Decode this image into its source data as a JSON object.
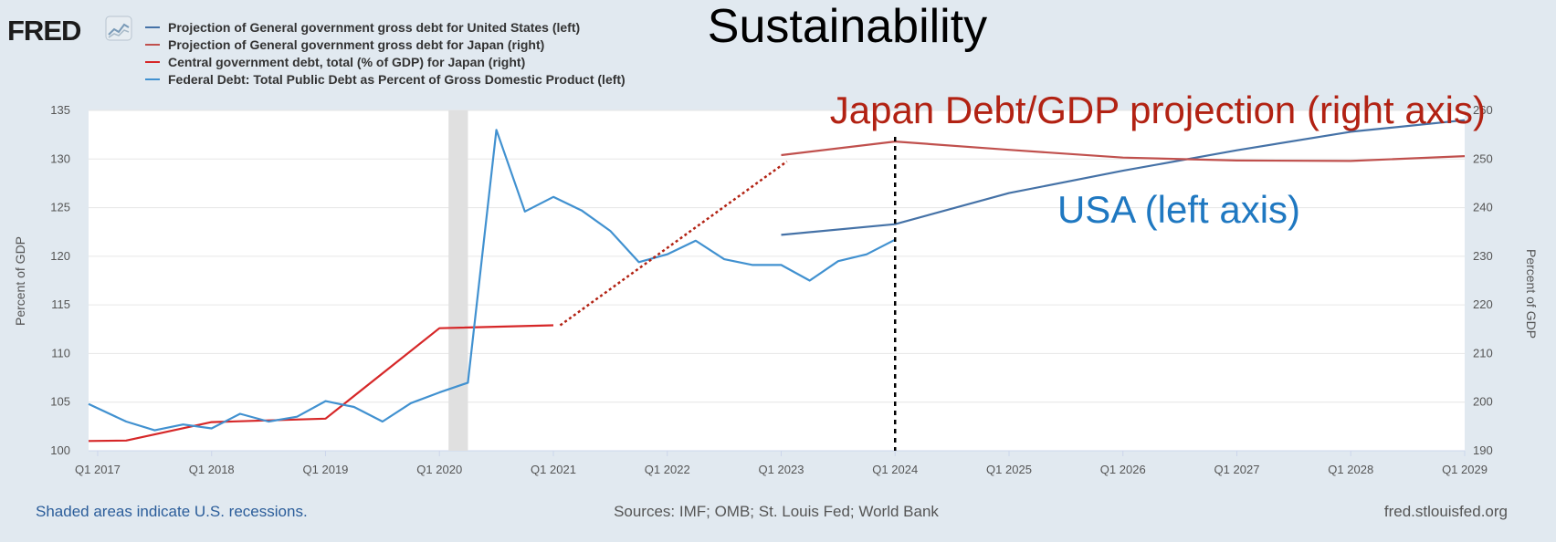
{
  "brand": {
    "logo_text": "FRED",
    "logo_icon": "line-chart-icon"
  },
  "overlay": {
    "title": "Sustainability",
    "japan_label": "Japan Debt/GDP projection (right axis)",
    "usa_label": "USA (left axis)"
  },
  "footer": {
    "recession_note": "Shaded areas indicate U.S. recessions.",
    "sources": "Sources: IMF; OMB; St. Louis Fed; World Bank",
    "site": "fred.stlouisfed.org"
  },
  "colors": {
    "us_projection": "#4572a7",
    "japan_projection": "#c0504d",
    "japan_central_debt": "#d62728",
    "us_federal_debt": "#4191d0",
    "japan_annotation": "#b22213",
    "usa_annotation": "#1f78c1",
    "recession": "#e0e0e0"
  },
  "chart_data": {
    "type": "line",
    "left_axis": {
      "label": "Percent of GDP",
      "range": [
        100,
        135
      ],
      "ticks": [
        100,
        105,
        110,
        115,
        120,
        125,
        130,
        135
      ]
    },
    "right_axis": {
      "label": "Percent of GDP",
      "range": [
        190,
        260
      ],
      "ticks": [
        190,
        200,
        210,
        220,
        230,
        240,
        250,
        260
      ]
    },
    "x_range": [
      2016.92,
      2029.0
    ],
    "x_ticks": [
      {
        "x": 2017,
        "label": "Q1 2017"
      },
      {
        "x": 2018,
        "label": "Q1 2018"
      },
      {
        "x": 2019,
        "label": "Q1 2019"
      },
      {
        "x": 2020,
        "label": "Q1 2020"
      },
      {
        "x": 2021,
        "label": "Q1 2021"
      },
      {
        "x": 2022,
        "label": "Q1 2022"
      },
      {
        "x": 2023,
        "label": "Q1 2023"
      },
      {
        "x": 2024,
        "label": "Q1 2024"
      },
      {
        "x": 2025,
        "label": "Q1 2025"
      },
      {
        "x": 2026,
        "label": "Q1 2026"
      },
      {
        "x": 2027,
        "label": "Q1 2027"
      },
      {
        "x": 2028,
        "label": "Q1 2028"
      },
      {
        "x": 2029,
        "label": "Q1 2029"
      }
    ],
    "recession": {
      "start": 2020.08,
      "end": 2020.25
    },
    "vertical_marker": 2024.0,
    "series": [
      {
        "name": "Projection of General government gross debt for United States (left)",
        "axis": "left",
        "color_key": "us_projection",
        "points": [
          [
            2023.0,
            122.2
          ],
          [
            2024.0,
            123.3
          ],
          [
            2025.0,
            126.5
          ],
          [
            2026.0,
            128.8
          ],
          [
            2027.0,
            130.9
          ],
          [
            2028.0,
            132.8
          ],
          [
            2029.0,
            134.0
          ]
        ]
      },
      {
        "name": "Projection of General government gross debt for Japan (right)",
        "axis": "right",
        "color_key": "japan_projection",
        "points": [
          [
            2023.0,
            250.8
          ],
          [
            2024.0,
            253.6
          ],
          [
            2025.0,
            251.9
          ],
          [
            2026.0,
            250.3
          ],
          [
            2027.0,
            249.7
          ],
          [
            2028.0,
            249.6
          ],
          [
            2029.0,
            250.6
          ]
        ]
      },
      {
        "name": "Central government debt, total (% of GDP) for Japan (right)",
        "axis": "right",
        "color_key": "japan_central_debt",
        "points": [
          [
            2016.92,
            192.0
          ],
          [
            2017.25,
            192.1
          ],
          [
            2018.0,
            195.9
          ],
          [
            2019.0,
            196.6
          ],
          [
            2020.0,
            215.2
          ],
          [
            2021.0,
            215.8
          ]
        ]
      },
      {
        "name": "Federal Debt: Total Public Debt as Percent of Gross Domestic Product (left)",
        "axis": "left",
        "color_key": "us_federal_debt",
        "points": [
          [
            2016.92,
            104.8
          ],
          [
            2017.25,
            103.0
          ],
          [
            2017.5,
            102.1
          ],
          [
            2017.75,
            102.7
          ],
          [
            2018.0,
            102.3
          ],
          [
            2018.25,
            103.8
          ],
          [
            2018.5,
            103.0
          ],
          [
            2018.75,
            103.5
          ],
          [
            2019.0,
            105.1
          ],
          [
            2019.25,
            104.5
          ],
          [
            2019.5,
            103.0
          ],
          [
            2019.75,
            104.9
          ],
          [
            2020.0,
            106.0
          ],
          [
            2020.25,
            107.0
          ],
          [
            2020.5,
            133.0
          ],
          [
            2020.75,
            124.6
          ],
          [
            2021.0,
            126.1
          ],
          [
            2021.25,
            124.7
          ],
          [
            2021.5,
            122.6
          ],
          [
            2021.75,
            119.4
          ],
          [
            2022.0,
            120.2
          ],
          [
            2022.25,
            121.6
          ],
          [
            2022.5,
            119.7
          ],
          [
            2022.75,
            119.1
          ],
          [
            2023.0,
            119.1
          ],
          [
            2023.25,
            117.5
          ],
          [
            2023.5,
            119.5
          ],
          [
            2023.75,
            120.2
          ],
          [
            2024.0,
            121.7
          ]
        ]
      }
    ],
    "annotation_bridge": {
      "from": [
        2021.06,
        215.8
      ],
      "to": [
        2023.05,
        249.5
      ],
      "color_key": "japan_annotation"
    }
  }
}
